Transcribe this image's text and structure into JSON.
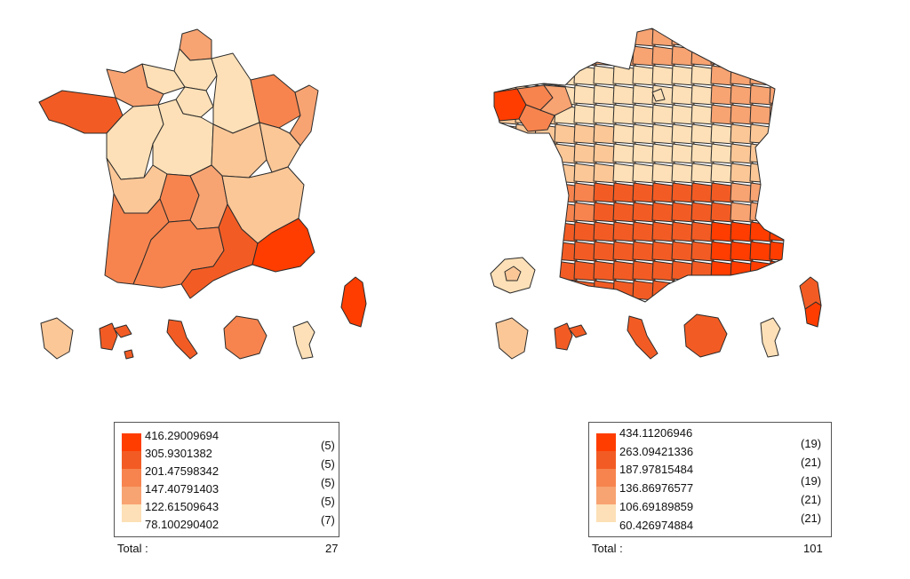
{
  "colors": [
    "#ff3d00",
    "#f25c24",
    "#f7844e",
    "#f8a372",
    "#fbc797",
    "#fde0b7"
  ],
  "maps": [
    {
      "id": "regions",
      "legend": {
        "breaks": [
          "416.29009694",
          "305.9301382",
          "201.47598342",
          "147.40791403",
          "122.61509643",
          "78.100290402"
        ],
        "counts": [
          "(5)",
          "(5)",
          "(5)",
          "(5)",
          "(7)"
        ],
        "total_label": "Total :",
        "total_value": "27"
      }
    },
    {
      "id": "departments",
      "legend": {
        "breaks": [
          "434.11206946",
          "263.09421336",
          "187.97815484",
          "136.86976577",
          "106.69189859",
          "60.426974884"
        ],
        "counts": [
          "(19)",
          "(21)",
          "(19)",
          "(21)",
          "(21)"
        ],
        "total_label": "Total :",
        "total_value": "101"
      }
    }
  ]
}
